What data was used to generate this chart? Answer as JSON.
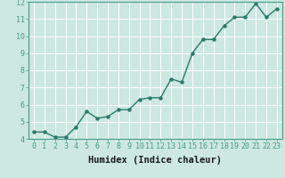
{
  "x": [
    0,
    1,
    2,
    3,
    4,
    5,
    6,
    7,
    8,
    9,
    10,
    11,
    12,
    13,
    14,
    15,
    16,
    17,
    18,
    19,
    20,
    21,
    22,
    23
  ],
  "y": [
    4.4,
    4.4,
    4.1,
    4.1,
    4.7,
    5.6,
    5.2,
    5.3,
    5.7,
    5.7,
    6.3,
    6.4,
    6.4,
    7.5,
    7.3,
    9.0,
    9.8,
    9.8,
    10.6,
    11.1,
    11.1,
    11.9,
    11.1,
    11.6
  ],
  "xlabel": "Humidex (Indice chaleur)",
  "ylim": [
    4,
    12
  ],
  "xlim": [
    -0.5,
    23.5
  ],
  "yticks": [
    4,
    5,
    6,
    7,
    8,
    9,
    10,
    11,
    12
  ],
  "xticks": [
    0,
    1,
    2,
    3,
    4,
    5,
    6,
    7,
    8,
    9,
    10,
    11,
    12,
    13,
    14,
    15,
    16,
    17,
    18,
    19,
    20,
    21,
    22,
    23
  ],
  "line_color": "#2a7a6a",
  "marker": "o",
  "marker_size": 2.2,
  "line_width": 1.0,
  "bg_color": "#cce8e0",
  "grid_color": "#ffffff",
  "tick_label_fontsize": 6.0,
  "xlabel_fontsize": 7.5,
  "spine_color": "#4a9a8a"
}
